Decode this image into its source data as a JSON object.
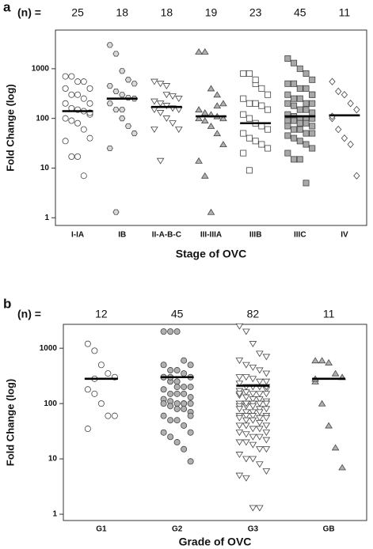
{
  "chart_data": [
    {
      "type": "scatter",
      "panel_label": "a",
      "n_label": "(n) =",
      "x_label": "Stage of OVC",
      "y_label": "Fold Change (log)",
      "log_y": true,
      "ylim": [
        0.7,
        6000
      ],
      "yticks": [
        1,
        10,
        100,
        1000
      ],
      "series": [
        {
          "name": "I-IA",
          "n": 25,
          "marker": "circle",
          "color": "#ffffff",
          "median": 140,
          "values": [
            700,
            700,
            550,
            550,
            400,
            400,
            300,
            300,
            250,
            200,
            200,
            160,
            150,
            140,
            120,
            100,
            90,
            80,
            60,
            40,
            35,
            17,
            17,
            7,
            130
          ]
        },
        {
          "name": "IB",
          "n": 18,
          "marker": "hexagon",
          "color": "#d8d8d8",
          "median": 250,
          "values": [
            3000,
            2000,
            900,
            600,
            500,
            450,
            350,
            300,
            260,
            250,
            200,
            150,
            100,
            70,
            50,
            25,
            1.3,
            150
          ]
        },
        {
          "name": "II-A-B-C",
          "n": 18,
          "marker": "triangle-down",
          "color": "#ffffff",
          "median": 170,
          "values": [
            550,
            500,
            450,
            280,
            250,
            220,
            200,
            180,
            160,
            150,
            150,
            130,
            100,
            80,
            60,
            60,
            14,
            300
          ]
        },
        {
          "name": "III-IIIA",
          "n": 19,
          "marker": "triangle-up",
          "color": "#b0b0b0",
          "median": 110,
          "values": [
            2200,
            2200,
            400,
            300,
            200,
            150,
            130,
            120,
            110,
            100,
            100,
            90,
            70,
            50,
            30,
            14,
            7,
            1.3,
            180
          ]
        },
        {
          "name": "IIIB",
          "n": 23,
          "marker": "square",
          "color": "#ffffff",
          "median": 80,
          "values": [
            800,
            800,
            500,
            400,
            300,
            250,
            200,
            200,
            180,
            150,
            120,
            100,
            80,
            70,
            60,
            50,
            40,
            35,
            30,
            25,
            20,
            9,
            600
          ]
        },
        {
          "name": "IIIC",
          "n": 45,
          "marker": "square",
          "color": "#a8a8a8",
          "median": 110,
          "values": [
            1600,
            1300,
            1000,
            800,
            600,
            500,
            500,
            400,
            400,
            300,
            300,
            250,
            250,
            200,
            200,
            200,
            180,
            150,
            150,
            130,
            120,
            110,
            100,
            100,
            100,
            90,
            90,
            80,
            80,
            70,
            70,
            60,
            60,
            50,
            50,
            45,
            40,
            35,
            30,
            25,
            20,
            15,
            15,
            5,
            300
          ]
        },
        {
          "name": "IV",
          "n": 11,
          "marker": "diamond",
          "color": "#ffffff",
          "median": 115,
          "values": [
            550,
            350,
            300,
            200,
            150,
            100,
            60,
            40,
            30,
            7,
            110
          ]
        }
      ]
    },
    {
      "type": "scatter",
      "panel_label": "b",
      "n_label": "(n) =",
      "x_label": "Grade of OVC",
      "y_label": "Fold Change (log)",
      "log_y": true,
      "ylim": [
        0.77,
        2700
      ],
      "yticks": [
        1,
        10,
        100,
        1000
      ],
      "series": [
        {
          "name": "G1",
          "n": 12,
          "marker": "circle",
          "color": "#ffffff",
          "median": 280,
          "values": [
            1200,
            900,
            500,
            350,
            300,
            180,
            150,
            100,
            60,
            60,
            35,
            280
          ]
        },
        {
          "name": "G2",
          "n": 45,
          "marker": "circle",
          "color": "#b0b0b0",
          "median": 300,
          "values": [
            2000,
            2000,
            2000,
            600,
            500,
            500,
            400,
            400,
            350,
            300,
            300,
            250,
            250,
            200,
            200,
            180,
            150,
            150,
            150,
            130,
            120,
            110,
            100,
            100,
            100,
            100,
            90,
            80,
            80,
            70,
            60,
            50,
            50,
            40,
            30,
            30,
            25,
            20,
            15,
            9,
            300,
            300,
            200,
            100,
            60
          ]
        },
        {
          "name": "G3",
          "n": 82,
          "marker": "triangle-down",
          "color": "#ffffff",
          "median": 210,
          "values": [
            2500,
            2000,
            1200,
            800,
            700,
            600,
            500,
            450,
            400,
            350,
            300,
            300,
            280,
            250,
            250,
            230,
            200,
            200,
            200,
            180,
            170,
            160,
            150,
            150,
            150,
            140,
            130,
            120,
            120,
            110,
            100,
            100,
            100,
            100,
            100,
            90,
            90,
            90,
            80,
            80,
            80,
            70,
            70,
            70,
            60,
            60,
            60,
            60,
            55,
            55,
            55,
            50,
            50,
            45,
            40,
            40,
            40,
            35,
            35,
            30,
            30,
            28,
            25,
            25,
            22,
            20,
            20,
            18,
            15,
            15,
            12,
            10,
            10,
            8,
            6,
            5,
            4.5,
            1.3,
            1.3,
            200,
            150,
            100
          ]
        },
        {
          "name": "GB",
          "n": 11,
          "marker": "triangle-up",
          "color": "#b0b0b0",
          "median": 280,
          "values": [
            600,
            600,
            550,
            350,
            300,
            250,
            100,
            40,
            16,
            7,
            280
          ]
        }
      ]
    }
  ]
}
